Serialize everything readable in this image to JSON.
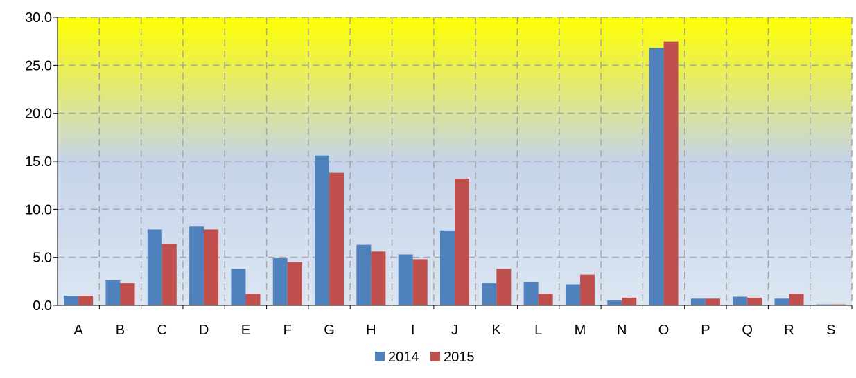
{
  "chart_data": {
    "type": "bar",
    "categories": [
      "A",
      "B",
      "C",
      "D",
      "E",
      "F",
      "G",
      "H",
      "I",
      "J",
      "K",
      "L",
      "M",
      "N",
      "O",
      "P",
      "Q",
      "R",
      "S"
    ],
    "series": [
      {
        "name": "2014",
        "color": "#4F81BD",
        "values": [
          1.0,
          2.6,
          7.9,
          8.2,
          3.8,
          4.9,
          15.6,
          6.3,
          5.3,
          7.8,
          2.3,
          2.4,
          2.2,
          0.5,
          26.8,
          0.7,
          0.9,
          0.7,
          0.1
        ]
      },
      {
        "name": "2015",
        "color": "#C0504D",
        "values": [
          1.0,
          2.3,
          6.4,
          7.9,
          1.2,
          4.5,
          13.8,
          5.6,
          4.8,
          13.2,
          3.8,
          1.2,
          3.2,
          0.8,
          27.5,
          0.7,
          0.8,
          1.2,
          0.1
        ]
      }
    ],
    "yticks": [
      "0.0",
      "5.0",
      "10.0",
      "15.0",
      "20.0",
      "25.0",
      "30.0"
    ],
    "ylim": [
      0,
      30
    ],
    "grid": true,
    "legend_position": "bottom-center",
    "background_gradient": [
      "#FFFF00",
      "#DCE6F2"
    ]
  }
}
